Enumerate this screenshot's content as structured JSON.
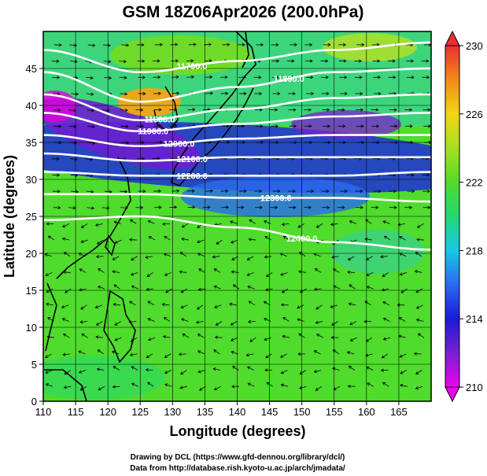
{
  "title": "GSM 18Z06Apr2026 (200.0hPa)",
  "x_axis": {
    "label": "Longitude (degrees)",
    "range": [
      110,
      170
    ],
    "ticks": [
      "110",
      "115",
      "120",
      "125",
      "130",
      "135",
      "140",
      "145",
      "150",
      "155",
      "160",
      "165"
    ],
    "tick_values": [
      110,
      115,
      120,
      125,
      130,
      135,
      140,
      145,
      150,
      155,
      160,
      165
    ]
  },
  "y_axis": {
    "label": "Latitude  (degrees)",
    "range": [
      0,
      50
    ],
    "ticks": [
      "0",
      "5",
      "10",
      "15",
      "20",
      "25",
      "30",
      "35",
      "40",
      "45"
    ],
    "tick_values": [
      0,
      5,
      10,
      15,
      20,
      25,
      30,
      35,
      40,
      45
    ]
  },
  "colorbar": {
    "range": [
      210,
      230
    ],
    "tick_labels": [
      "210",
      "214",
      "218",
      "222",
      "226",
      "230"
    ],
    "tick_values": [
      210,
      214,
      218,
      222,
      226,
      230
    ],
    "colors": [
      "#ee00ee",
      "#7a1fd0",
      "#1a1ad8",
      "#2a6af0",
      "#16c8e6",
      "#22d872",
      "#50dc2a",
      "#a6e020",
      "#f2d616",
      "#f28a16",
      "#e83030"
    ]
  },
  "contours": {
    "line_color": "#ffffff",
    "levels": [
      {
        "label": "11700.0",
        "lat_at": [
          [
            110,
            47.5
          ],
          [
            125,
            44.5
          ],
          [
            140,
            46.0
          ],
          [
            155,
            47.5
          ],
          [
            170,
            48.5
          ]
        ]
      },
      {
        "label": "11800.0",
        "lat_at": [
          [
            110,
            44.5
          ],
          [
            125,
            40.5
          ],
          [
            140,
            42.5
          ],
          [
            155,
            44.5
          ],
          [
            170,
            45.0
          ]
        ]
      },
      {
        "label": "11900.0",
        "lat_at": [
          [
            110,
            41.5
          ],
          [
            125,
            38.0
          ],
          [
            140,
            39.5
          ],
          [
            155,
            41.0
          ],
          [
            170,
            41.5
          ]
        ]
      },
      {
        "label": "11900.0",
        "lat_at": [
          [
            110,
            39.0
          ],
          [
            125,
            36.5
          ],
          [
            140,
            37.5
          ],
          [
            155,
            38.5
          ],
          [
            170,
            39.0
          ]
        ]
      },
      {
        "label": "12000.0",
        "lat_at": [
          [
            110,
            36.0
          ],
          [
            125,
            34.5
          ],
          [
            140,
            35.5
          ],
          [
            155,
            36.0
          ],
          [
            170,
            36.0
          ]
        ]
      },
      {
        "label": "12100.0",
        "lat_at": [
          [
            110,
            33.5
          ],
          [
            125,
            32.5
          ],
          [
            140,
            33.0
          ],
          [
            155,
            33.0
          ],
          [
            170,
            33.0
          ]
        ]
      },
      {
        "label": "12200.0",
        "lat_at": [
          [
            110,
            31.0
          ],
          [
            125,
            30.5
          ],
          [
            140,
            30.5
          ],
          [
            155,
            30.5
          ],
          [
            170,
            31.0
          ]
        ]
      },
      {
        "label": "12300.0",
        "lat_at": [
          [
            110,
            28.0
          ],
          [
            125,
            28.0
          ],
          [
            140,
            27.5
          ],
          [
            155,
            27.5
          ],
          [
            170,
            27.0
          ]
        ]
      },
      {
        "label": "12400.0",
        "lat_at": [
          [
            110,
            24.5
          ],
          [
            125,
            25.0
          ],
          [
            140,
            23.5
          ],
          [
            155,
            21.5
          ],
          [
            170,
            20.5
          ]
        ]
      }
    ]
  },
  "credits": [
    "Drawing by DCL (https://www.gfd-dennou.org/library/dcl/)",
    "Data from http://database.rish.kyoto-u.ac.jp/arch/jmadata/"
  ]
}
